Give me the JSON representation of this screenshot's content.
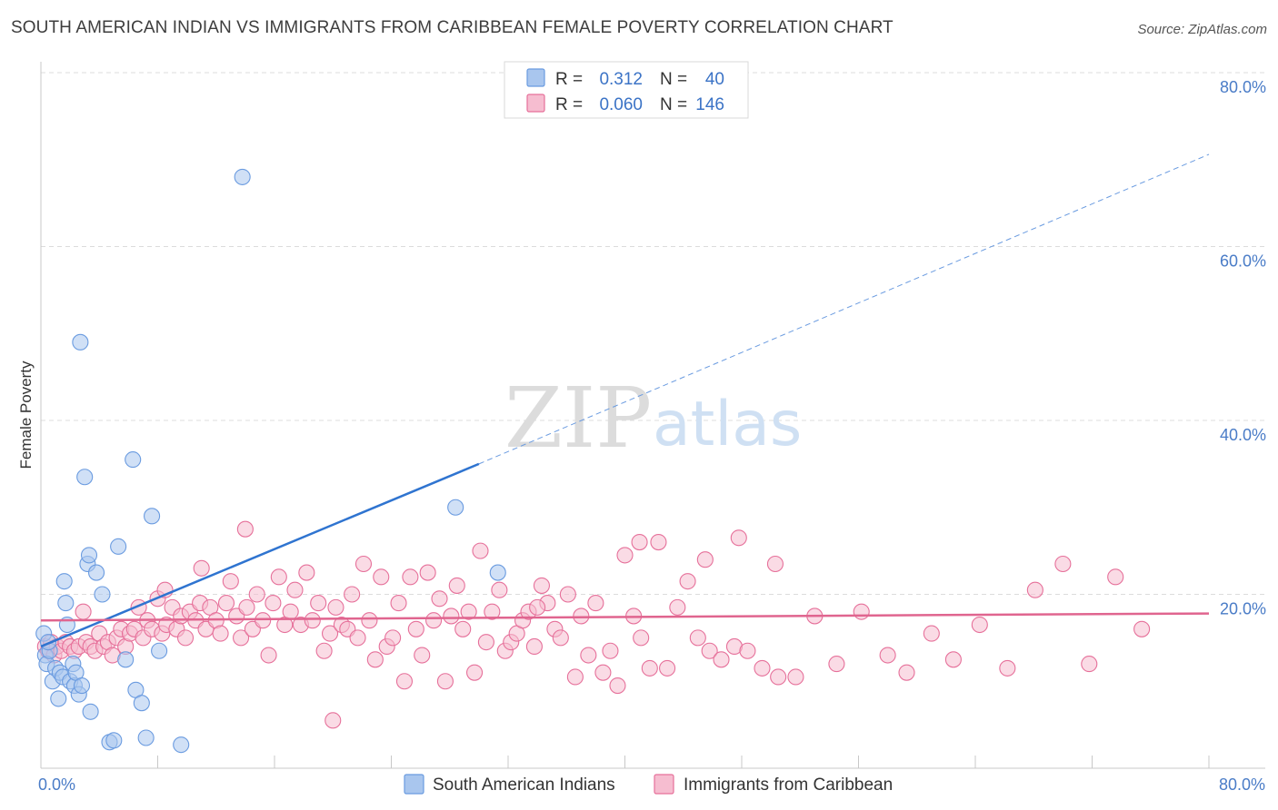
{
  "title": "SOUTH AMERICAN INDIAN VS IMMIGRANTS FROM CARIBBEAN FEMALE POVERTY CORRELATION CHART",
  "source": "Source: ZipAtlas.com",
  "watermark": {
    "part1": "ZIP",
    "part2": "atlas"
  },
  "chart_data": {
    "type": "scatter",
    "title": "SOUTH AMERICAN INDIAN VS IMMIGRANTS FROM CARIBBEAN FEMALE POVERTY CORRELATION CHART",
    "xlabel": "",
    "ylabel": "Female Poverty",
    "xlim": [
      0,
      80
    ],
    "ylim": [
      0,
      80
    ],
    "x_tick_labels": [
      "0.0%",
      "80.0%"
    ],
    "y_ticks": [
      20,
      40,
      60,
      80
    ],
    "y_tick_labels": [
      "20.0%",
      "40.0%",
      "60.0%",
      "80.0%"
    ],
    "grid": true,
    "legend_position": "top-center",
    "series": [
      {
        "name": "South American Indians",
        "color": "#6a9be0",
        "fill": "#a9c6ee",
        "R": "0.312",
        "N": "40",
        "trend": {
          "x0": 0,
          "y0": 14.0,
          "x1": 30,
          "y1": 35.0,
          "x_dash_end": 80,
          "y_dash_end": 70.6
        },
        "points": [
          [
            0.2,
            15.5
          ],
          [
            0.3,
            13.0
          ],
          [
            0.4,
            12.0
          ],
          [
            0.6,
            13.5
          ],
          [
            0.8,
            10.0
          ],
          [
            1.0,
            11.5
          ],
          [
            1.2,
            8.0
          ],
          [
            1.3,
            11.0
          ],
          [
            1.5,
            10.5
          ],
          [
            1.6,
            21.5
          ],
          [
            1.7,
            19.0
          ],
          [
            1.8,
            16.5
          ],
          [
            2.0,
            10.0
          ],
          [
            2.2,
            12.0
          ],
          [
            2.3,
            9.5
          ],
          [
            2.4,
            11.0
          ],
          [
            2.6,
            8.5
          ],
          [
            2.7,
            49.0
          ],
          [
            2.8,
            9.5
          ],
          [
            3.0,
            33.5
          ],
          [
            3.2,
            23.5
          ],
          [
            3.3,
            24.5
          ],
          [
            3.4,
            6.5
          ],
          [
            3.8,
            22.5
          ],
          [
            4.2,
            20.0
          ],
          [
            4.7,
            3.0
          ],
          [
            5.0,
            3.2
          ],
          [
            5.3,
            25.5
          ],
          [
            5.8,
            12.5
          ],
          [
            6.3,
            35.5
          ],
          [
            6.5,
            9.0
          ],
          [
            6.9,
            7.5
          ],
          [
            7.2,
            3.5
          ],
          [
            7.6,
            29.0
          ],
          [
            8.1,
            13.5
          ],
          [
            9.6,
            2.7
          ],
          [
            13.8,
            68.0
          ],
          [
            28.4,
            30.0
          ],
          [
            31.3,
            22.5
          ],
          [
            0.5,
            14.5
          ]
        ]
      },
      {
        "name": "Immigrants from Caribbean",
        "color": "#e6709a",
        "fill": "#f6bdd0",
        "R": "0.060",
        "N": "146",
        "trend": {
          "x0": 0,
          "y0": 17.0,
          "x1": 80,
          "y1": 17.8
        },
        "points": [
          [
            0.3,
            14.0
          ],
          [
            0.5,
            13.5
          ],
          [
            0.7,
            14.5
          ],
          [
            0.9,
            13.0
          ],
          [
            1.1,
            14.0
          ],
          [
            1.4,
            13.5
          ],
          [
            1.7,
            14.5
          ],
          [
            2.0,
            14.0
          ],
          [
            2.3,
            13.5
          ],
          [
            2.6,
            14.0
          ],
          [
            2.9,
            18.0
          ],
          [
            3.1,
            14.5
          ],
          [
            3.4,
            14.0
          ],
          [
            3.7,
            13.5
          ],
          [
            4.0,
            15.5
          ],
          [
            4.3,
            14.0
          ],
          [
            4.6,
            14.5
          ],
          [
            4.9,
            13.0
          ],
          [
            5.2,
            15.0
          ],
          [
            5.5,
            16.0
          ],
          [
            5.8,
            14.0
          ],
          [
            6.1,
            15.5
          ],
          [
            6.4,
            16.0
          ],
          [
            6.7,
            18.5
          ],
          [
            7.0,
            15.0
          ],
          [
            7.3,
            17.0
          ],
          [
            7.6,
            16.0
          ],
          [
            8.0,
            19.5
          ],
          [
            8.3,
            15.5
          ],
          [
            8.6,
            16.5
          ],
          [
            9.0,
            18.5
          ],
          [
            9.3,
            16.0
          ],
          [
            9.6,
            17.5
          ],
          [
            9.9,
            15.0
          ],
          [
            10.2,
            18.0
          ],
          [
            10.6,
            17.0
          ],
          [
            10.9,
            19.0
          ],
          [
            11.3,
            16.0
          ],
          [
            11.6,
            18.5
          ],
          [
            12.0,
            17.0
          ],
          [
            12.3,
            15.5
          ],
          [
            12.7,
            19.0
          ],
          [
            13.0,
            21.5
          ],
          [
            13.4,
            17.5
          ],
          [
            13.7,
            15.0
          ],
          [
            14.1,
            18.5
          ],
          [
            14.5,
            16.0
          ],
          [
            14.8,
            20.0
          ],
          [
            15.2,
            17.0
          ],
          [
            15.6,
            13.0
          ],
          [
            15.9,
            19.0
          ],
          [
            16.3,
            22.0
          ],
          [
            16.7,
            16.5
          ],
          [
            17.1,
            18.0
          ],
          [
            17.4,
            20.5
          ],
          [
            17.8,
            16.5
          ],
          [
            18.2,
            22.5
          ],
          [
            18.6,
            17.0
          ],
          [
            19.0,
            19.0
          ],
          [
            19.4,
            13.5
          ],
          [
            19.8,
            15.5
          ],
          [
            20.2,
            18.5
          ],
          [
            20.6,
            16.5
          ],
          [
            21.0,
            16.0
          ],
          [
            21.3,
            20.0
          ],
          [
            21.7,
            15.0
          ],
          [
            22.1,
            23.5
          ],
          [
            22.5,
            17.0
          ],
          [
            22.9,
            12.5
          ],
          [
            23.3,
            22.0
          ],
          [
            23.7,
            14.0
          ],
          [
            24.1,
            15.0
          ],
          [
            24.5,
            19.0
          ],
          [
            24.9,
            10.0
          ],
          [
            25.3,
            22.0
          ],
          [
            25.7,
            16.0
          ],
          [
            26.1,
            13.0
          ],
          [
            26.5,
            22.5
          ],
          [
            26.9,
            17.0
          ],
          [
            27.3,
            19.5
          ],
          [
            27.7,
            10.0
          ],
          [
            28.1,
            17.5
          ],
          [
            28.5,
            21.0
          ],
          [
            28.9,
            16.0
          ],
          [
            29.3,
            18.0
          ],
          [
            29.7,
            11.0
          ],
          [
            30.1,
            25.0
          ],
          [
            30.5,
            14.5
          ],
          [
            30.9,
            18.0
          ],
          [
            31.4,
            20.5
          ],
          [
            31.8,
            13.5
          ],
          [
            32.2,
            14.5
          ],
          [
            32.6,
            15.5
          ],
          [
            33.0,
            17.0
          ],
          [
            33.4,
            18.0
          ],
          [
            33.8,
            14.0
          ],
          [
            34.3,
            21.0
          ],
          [
            34.7,
            19.0
          ],
          [
            35.2,
            16.0
          ],
          [
            35.6,
            15.0
          ],
          [
            36.1,
            20.0
          ],
          [
            36.6,
            10.5
          ],
          [
            37.0,
            17.5
          ],
          [
            37.5,
            13.0
          ],
          [
            38.0,
            19.0
          ],
          [
            38.5,
            11.0
          ],
          [
            39.0,
            13.5
          ],
          [
            39.5,
            9.5
          ],
          [
            40.0,
            24.5
          ],
          [
            40.6,
            17.5
          ],
          [
            41.1,
            15.0
          ],
          [
            41.7,
            11.5
          ],
          [
            42.3,
            26.0
          ],
          [
            42.9,
            11.5
          ],
          [
            43.6,
            18.5
          ],
          [
            44.3,
            21.5
          ],
          [
            45.0,
            15.0
          ],
          [
            45.8,
            13.5
          ],
          [
            46.6,
            12.5
          ],
          [
            47.5,
            14.0
          ],
          [
            48.4,
            13.5
          ],
          [
            49.4,
            11.5
          ],
          [
            50.5,
            10.5
          ],
          [
            51.7,
            10.5
          ],
          [
            53.0,
            17.5
          ],
          [
            54.5,
            12.0
          ],
          [
            56.2,
            18.0
          ],
          [
            58.0,
            13.0
          ],
          [
            59.3,
            11.0
          ],
          [
            61.0,
            15.5
          ],
          [
            62.5,
            12.5
          ],
          [
            64.3,
            16.5
          ],
          [
            66.2,
            11.5
          ],
          [
            68.1,
            20.5
          ],
          [
            70.0,
            23.5
          ],
          [
            71.8,
            12.0
          ],
          [
            73.6,
            22.0
          ],
          [
            75.4,
            16.0
          ],
          [
            20.0,
            5.5
          ],
          [
            14.0,
            27.5
          ],
          [
            41.0,
            26.0
          ],
          [
            45.5,
            24.0
          ],
          [
            47.8,
            26.5
          ],
          [
            50.3,
            23.5
          ],
          [
            11.0,
            23.0
          ],
          [
            34.0,
            18.5
          ],
          [
            8.5,
            20.5
          ]
        ]
      }
    ]
  }
}
